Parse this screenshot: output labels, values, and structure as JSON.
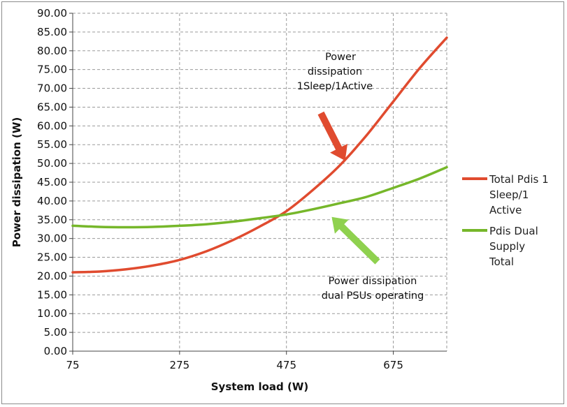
{
  "chart_data": {
    "type": "line",
    "xlabel": "System load (W)",
    "ylabel": "Power dissipation (W)",
    "xlim": [
      75,
      775
    ],
    "ylim": [
      0,
      90
    ],
    "x_ticks": [
      "75",
      "275",
      "475",
      "675"
    ],
    "x_tick_values": [
      75,
      275,
      475,
      675
    ],
    "y_ticks": [
      "0.00",
      "5.00",
      "10.00",
      "15.00",
      "20.00",
      "25.00",
      "30.00",
      "35.00",
      "40.00",
      "45.00",
      "50.00",
      "55.00",
      "60.00",
      "65.00",
      "70.00",
      "75.00",
      "80.00",
      "85.00",
      "90.00"
    ],
    "y_tick_values": [
      0,
      5,
      10,
      15,
      20,
      25,
      30,
      35,
      40,
      45,
      50,
      55,
      60,
      65,
      70,
      75,
      80,
      85,
      90
    ],
    "grid": true,
    "legend_position": "right",
    "series": [
      {
        "name": "Total Pdis 1 Sleep/1 Active",
        "legend_lines": [
          "Total Pdis 1",
          "Sleep/1",
          "Active"
        ],
        "color": "#e04b2f",
        "x": [
          75,
          125,
          175,
          225,
          275,
          325,
          375,
          425,
          475,
          525,
          575,
          625,
          675,
          725,
          775
        ],
        "y": [
          21.0,
          21.2,
          21.8,
          22.8,
          24.3,
          26.6,
          29.6,
          33.2,
          37.3,
          43.0,
          49.5,
          57.5,
          66.5,
          75.5,
          83.5
        ]
      },
      {
        "name": "Pdis Dual Supply Total",
        "legend_lines": [
          "Pdis Dual",
          "Supply",
          "Total"
        ],
        "color": "#76b72a",
        "x": [
          75,
          125,
          175,
          225,
          275,
          325,
          375,
          425,
          475,
          525,
          575,
          625,
          675,
          725,
          775
        ],
        "y": [
          33.4,
          33.1,
          33.0,
          33.1,
          33.4,
          33.8,
          34.5,
          35.4,
          36.4,
          37.8,
          39.4,
          41.1,
          43.5,
          46.0,
          49.0
        ]
      }
    ],
    "annotations": [
      {
        "lines": [
          "Power",
          "dissipation",
          "1Sleep/1Active"
        ],
        "color": "#e04b2f",
        "arrow_tip": [
          590,
          50
        ]
      },
      {
        "lines": [
          "Power dissipation",
          "dual PSUs operating"
        ],
        "color": "#8fd14f",
        "arrow_tip": [
          565,
          36.5
        ]
      }
    ]
  }
}
